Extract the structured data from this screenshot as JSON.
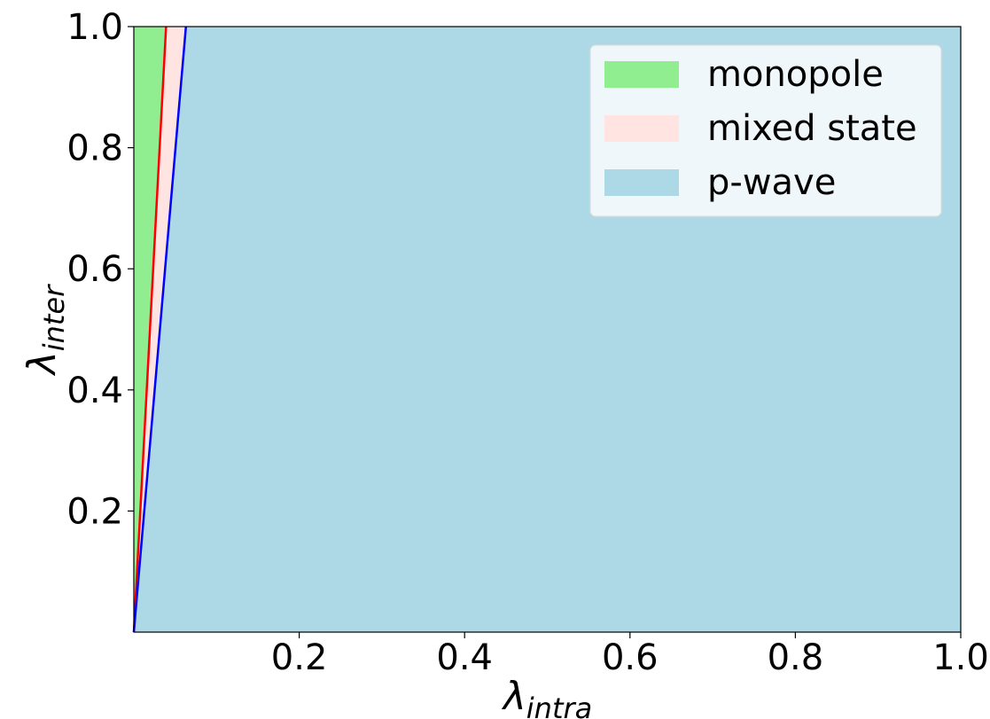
{
  "chart_data": {
    "type": "area",
    "title": "",
    "xlabel": {
      "base": "λ",
      "sub": "intra"
    },
    "ylabel": {
      "base": "λ",
      "sub": "inter"
    },
    "xlim": [
      0.0,
      1.0
    ],
    "ylim": [
      0.0,
      1.0
    ],
    "xticks": [
      0.2,
      0.4,
      0.6,
      0.8,
      1.0
    ],
    "xtick_labels": [
      "0.2",
      "0.4",
      "0.6",
      "0.8",
      "1.0"
    ],
    "yticks": [
      0.2,
      0.4,
      0.6,
      0.8,
      1.0
    ],
    "ytick_labels": [
      "0.2",
      "0.4",
      "0.6",
      "0.8",
      "1.0"
    ],
    "grid": false,
    "legend_position": "top-right",
    "boundaries": [
      {
        "id": "monopole-boundary",
        "color": "#ff0000",
        "x": [
          0.0,
          0.039
        ],
        "y": [
          0.0,
          1.0
        ]
      },
      {
        "id": "pwave-boundary",
        "color": "#0000ff",
        "x": [
          0.0,
          0.063
        ],
        "y": [
          0.0,
          1.0
        ]
      }
    ],
    "regions": [
      {
        "name": "monopole",
        "color": "#90ee90"
      },
      {
        "name": "mixed state",
        "color": "#ffe4e1"
      },
      {
        "name": "p-wave",
        "color": "#add8e6"
      }
    ]
  }
}
